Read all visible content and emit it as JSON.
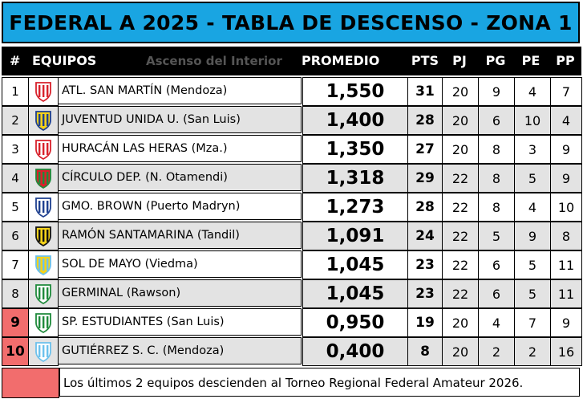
{
  "title": "FEDERAL A 2025 - TABLA DE DESCENSO - ZONA 1",
  "watermark": "Ascenso del Interior",
  "columns": {
    "num": "#",
    "team": "EQUIPOS",
    "average": "PROMEDIO",
    "pts": "PTS",
    "pj": "PJ",
    "pg": "PG",
    "pe": "PE",
    "pp": "PP"
  },
  "rows": [
    {
      "pos": "1",
      "team": "ATL. SAN MARTÍN (Mendoza)",
      "average": "1,550",
      "pts": "31",
      "pj": "20",
      "pg": "9",
      "pe": "4",
      "pp": "7",
      "relegation": false,
      "shield_icon": "san-martin-mendoza-shield-icon",
      "shield_colors": [
        "#d8212b",
        "#ffffff"
      ]
    },
    {
      "pos": "2",
      "team": "JUVENTUD UNIDA U. (San Luis)",
      "average": "1,400",
      "pts": "28",
      "pj": "20",
      "pg": "6",
      "pe": "10",
      "pp": "4",
      "relegation": false,
      "shield_icon": "juventud-unida-shield-icon",
      "shield_colors": [
        "#1d3f8f",
        "#f4d21a"
      ]
    },
    {
      "pos": "3",
      "team": "HURACÁN LAS HERAS (Mza.)",
      "average": "1,350",
      "pts": "27",
      "pj": "20",
      "pg": "8",
      "pe": "3",
      "pp": "9",
      "relegation": false,
      "shield_icon": "huracan-las-heras-shield-icon",
      "shield_colors": [
        "#d8212b",
        "#ffffff"
      ]
    },
    {
      "pos": "4",
      "team": "CÍRCULO DEP. (N. Otamendi)",
      "average": "1,318",
      "pts": "29",
      "pj": "22",
      "pg": "8",
      "pe": "5",
      "pp": "9",
      "relegation": false,
      "shield_icon": "circulo-deportivo-shield-icon",
      "shield_colors": [
        "#1f8a3b",
        "#d8212b"
      ]
    },
    {
      "pos": "5",
      "team": "GMO. BROWN (Puerto Madryn)",
      "average": "1,273",
      "pts": "28",
      "pj": "22",
      "pg": "8",
      "pe": "4",
      "pp": "10",
      "relegation": false,
      "shield_icon": "guillermo-brown-shield-icon",
      "shield_colors": [
        "#1d3f8f",
        "#ffffff"
      ]
    },
    {
      "pos": "6",
      "team": "RAMÓN SANTAMARINA (Tandil)",
      "average": "1,091",
      "pts": "24",
      "pj": "22",
      "pg": "5",
      "pe": "9",
      "pp": "8",
      "relegation": false,
      "shield_icon": "santamarina-shield-icon",
      "shield_colors": [
        "#111111",
        "#f4d21a"
      ]
    },
    {
      "pos": "7",
      "team": "SOL DE MAYO (Viedma)",
      "average": "1,045",
      "pts": "23",
      "pj": "22",
      "pg": "6",
      "pe": "5",
      "pp": "11",
      "relegation": false,
      "shield_icon": "sol-de-mayo-shield-icon",
      "shield_colors": [
        "#6cc1ec",
        "#f4d21a"
      ]
    },
    {
      "pos": "8",
      "team": "GERMINAL (Rawson)",
      "average": "1,045",
      "pts": "23",
      "pj": "22",
      "pg": "6",
      "pe": "5",
      "pp": "11",
      "relegation": false,
      "shield_icon": "germinal-shield-icon",
      "shield_colors": [
        "#1f8a3b",
        "#ffffff"
      ]
    },
    {
      "pos": "9",
      "team": "SP. ESTUDIANTES (San Luis)",
      "average": "0,950",
      "pts": "19",
      "pj": "20",
      "pg": "4",
      "pe": "7",
      "pp": "9",
      "relegation": true,
      "shield_icon": "sportivo-estudiantes-shield-icon",
      "shield_colors": [
        "#1f8a3b",
        "#ffffff"
      ]
    },
    {
      "pos": "10",
      "team": "GUTIÉRREZ S. C. (Mendoza)",
      "average": "0,400",
      "pts": "8",
      "pj": "20",
      "pg": "2",
      "pe": "2",
      "pp": "16",
      "relegation": true,
      "shield_icon": "gutierrez-shield-icon",
      "shield_colors": [
        "#6cc1ec",
        "#ffffff"
      ]
    }
  ],
  "footer_note": "Los últimos 2 equipos descienden al Torneo Regional Federal Amateur 2026.",
  "colors": {
    "title_bg": "#19a5e2",
    "header_bg": "#000000",
    "alt_row_bg": "#e3e3e3",
    "relegation": "#f26d6d"
  }
}
